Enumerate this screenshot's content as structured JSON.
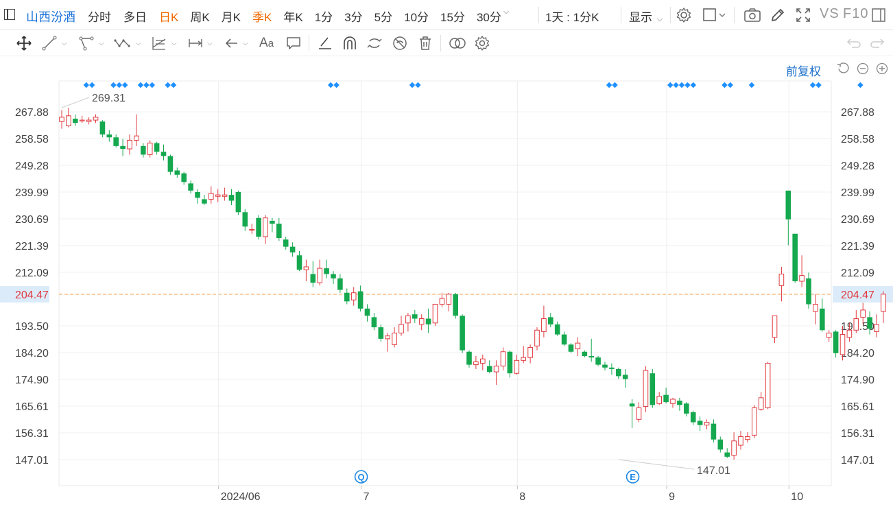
{
  "header": {
    "stock_name": "山西汾酒",
    "periods": [
      {
        "label": "分时",
        "active": false
      },
      {
        "label": "多日",
        "active": false,
        "dropdown": false
      },
      {
        "label": "日K",
        "active": true
      },
      {
        "label": "周K",
        "active": false
      },
      {
        "label": "月K",
        "active": false
      },
      {
        "label": "季K",
        "active": true
      },
      {
        "label": "年K",
        "active": false
      },
      {
        "label": "1分",
        "active": false
      },
      {
        "label": "3分",
        "active": false
      },
      {
        "label": "5分",
        "active": false
      },
      {
        "label": "10分",
        "active": false
      },
      {
        "label": "15分",
        "active": false
      },
      {
        "label": "30分",
        "active": false,
        "dropdown": true
      }
    ],
    "interval_select": "1天 : 1分K",
    "display_menu": "显示",
    "vs_label": "VS",
    "f10_label": "F10"
  },
  "adjust_label": "前复权",
  "accent_color": "#1a73d9",
  "colors": {
    "up": "#e0393e",
    "down": "#15a84f",
    "last_price_line": "#f0a050",
    "marker": "#1e90ff"
  },
  "chart_data": {
    "type": "candlestick",
    "y_ticks": [
      "267.88",
      "258.58",
      "249.28",
      "239.99",
      "230.69",
      "221.39",
      "212.09",
      "204.47",
      "193.50",
      "184.20",
      "174.90",
      "165.61",
      "156.31",
      "147.01"
    ],
    "ylim": [
      147.01,
      267.88
    ],
    "last_price": "204.47",
    "x_labels": [
      {
        "label": "2024/06",
        "index": 23
      },
      {
        "label": "7",
        "index": 44
      },
      {
        "label": "8",
        "index": 67
      },
      {
        "label": "9",
        "index": 89
      },
      {
        "label": "10",
        "index": 107
      }
    ],
    "high_annotation": {
      "label": "269.31",
      "value": 269.31,
      "index": 0
    },
    "low_annotation": {
      "label": "147.01",
      "value": 147.01,
      "index": 82
    },
    "event_markers": [
      {
        "label": "Q",
        "index": 44
      },
      {
        "label": "E",
        "index": 84
      }
    ],
    "dot_groups": [
      {
        "index": 2,
        "count": 2
      },
      {
        "index": 6,
        "count": 3
      },
      {
        "index": 10,
        "count": 3
      },
      {
        "index": 14,
        "count": 2
      },
      {
        "index": 38,
        "count": 2
      },
      {
        "index": 50,
        "count": 2
      },
      {
        "index": 79,
        "count": 2
      },
      {
        "index": 88,
        "count": 5
      },
      {
        "index": 96,
        "count": 2
      },
      {
        "index": 100,
        "count": 1
      },
      {
        "index": 109,
        "count": 2
      },
      {
        "index": 116,
        "count": 1
      }
    ],
    "candles": [
      [
        264.5,
        268.5,
        262,
        266
      ],
      [
        263,
        269.31,
        262.5,
        266.5
      ],
      [
        265.5,
        267,
        263,
        264
      ],
      [
        265,
        266.5,
        264,
        265
      ],
      [
        264.5,
        266,
        263.5,
        265
      ],
      [
        265,
        267,
        264,
        266
      ],
      [
        264.5,
        265,
        259,
        260
      ],
      [
        260,
        261.5,
        257.5,
        259
      ],
      [
        259,
        260,
        255.5,
        256
      ],
      [
        256,
        258.5,
        252.5,
        255
      ],
      [
        255,
        260,
        253,
        258
      ],
      [
        258,
        267,
        256,
        259.5
      ],
      [
        256,
        257,
        252,
        253
      ],
      [
        253,
        258,
        252,
        257
      ],
      [
        257,
        257.5,
        253,
        254
      ],
      [
        254,
        256.5,
        251,
        252.5
      ],
      [
        252.5,
        253,
        246,
        247
      ],
      [
        247.5,
        248.5,
        245,
        246
      ],
      [
        246.5,
        247,
        242.5,
        243.5
      ],
      [
        243,
        244,
        239.5,
        240.5
      ],
      [
        240,
        241,
        236,
        238
      ],
      [
        237.5,
        239,
        235.5,
        236
      ],
      [
        237.5,
        242,
        236,
        239.5
      ],
      [
        238.5,
        241,
        236.5,
        239
      ],
      [
        238.5,
        241.5,
        237,
        239
      ],
      [
        239,
        241,
        235.5,
        237
      ],
      [
        240,
        240.5,
        232,
        233
      ],
      [
        233,
        234,
        226.5,
        228
      ],
      [
        227,
        229,
        225.5,
        227
      ],
      [
        231,
        232,
        223.5,
        224.5
      ],
      [
        224.5,
        232,
        222,
        231
      ],
      [
        230,
        231,
        226,
        229
      ],
      [
        229,
        231,
        223,
        224
      ],
      [
        223.5,
        224.5,
        220,
        221
      ],
      [
        221,
        222.5,
        217.5,
        219
      ],
      [
        218,
        219.5,
        212.5,
        213
      ],
      [
        213,
        216.5,
        209,
        214
      ],
      [
        211.5,
        216,
        207,
        208.5
      ],
      [
        208.5,
        216.5,
        207.5,
        213.5
      ],
      [
        213.5,
        216.5,
        210,
        211.5
      ],
      [
        211.5,
        212.5,
        208,
        210
      ],
      [
        210,
        211.5,
        205,
        206
      ],
      [
        205,
        206.5,
        201,
        202
      ],
      [
        202.5,
        207,
        200.5,
        205
      ],
      [
        205.5,
        207.5,
        198.5,
        199.5
      ],
      [
        199.5,
        201,
        195,
        197
      ],
      [
        196.5,
        198,
        192,
        193
      ],
      [
        193,
        194,
        188,
        189
      ],
      [
        189,
        191,
        184.5,
        190
      ],
      [
        187,
        193,
        186,
        191
      ],
      [
        191,
        197,
        190,
        194
      ],
      [
        194.5,
        198,
        191.5,
        197
      ],
      [
        197.5,
        199,
        194.5,
        196
      ],
      [
        194,
        197.5,
        192,
        196
      ],
      [
        196,
        199.5,
        191,
        194
      ],
      [
        194.5,
        200.5,
        193.5,
        201
      ],
      [
        201,
        205,
        200,
        203
      ],
      [
        201,
        205,
        198.5,
        204.5
      ],
      [
        204.5,
        205,
        196,
        197
      ],
      [
        197,
        197.5,
        184,
        185
      ],
      [
        184.5,
        185,
        179,
        180
      ],
      [
        180,
        183,
        178.5,
        181
      ],
      [
        180.5,
        183.5,
        178,
        182
      ],
      [
        179.5,
        181.5,
        177,
        177.5
      ],
      [
        177.5,
        181.5,
        173,
        179.5
      ],
      [
        179.5,
        186,
        178,
        184.5
      ],
      [
        184.5,
        185,
        175.5,
        177
      ],
      [
        177,
        183.5,
        176.5,
        181.5
      ],
      [
        181.5,
        186.5,
        180.5,
        182.5
      ],
      [
        182.5,
        187,
        180.5,
        186
      ],
      [
        186.5,
        193,
        185,
        192
      ],
      [
        191.5,
        200.5,
        189.5,
        196
      ],
      [
        196.5,
        198,
        193,
        194
      ],
      [
        194,
        195,
        190,
        190.5
      ],
      [
        190.5,
        191.5,
        186.5,
        187
      ],
      [
        187,
        187.5,
        184,
        184.5
      ],
      [
        185.5,
        189.5,
        183,
        187.5
      ],
      [
        184.5,
        185,
        182.5,
        183
      ],
      [
        183,
        189,
        181,
        182.5
      ],
      [
        182.5,
        183,
        179.5,
        180
      ],
      [
        180,
        181,
        178,
        179
      ],
      [
        179,
        180.5,
        176.5,
        178.5
      ],
      [
        178.5,
        179,
        175,
        176
      ],
      [
        176.5,
        178.5,
        172,
        175
      ],
      [
        166.5,
        168,
        158,
        165.5
      ],
      [
        161,
        167,
        160,
        165
      ],
      [
        165.5,
        179.5,
        163.5,
        178
      ],
      [
        177,
        178.5,
        165,
        166
      ],
      [
        166.5,
        170.5,
        166,
        169
      ],
      [
        169.5,
        172,
        166.5,
        167
      ],
      [
        166.5,
        168.5,
        165,
        168
      ],
      [
        167.5,
        168.5,
        164,
        166
      ],
      [
        166.5,
        167,
        162,
        163
      ],
      [
        163.5,
        164,
        159,
        160
      ],
      [
        160.5,
        162,
        157,
        159
      ],
      [
        159,
        161,
        157.5,
        160
      ],
      [
        159.5,
        161,
        153,
        154
      ],
      [
        154,
        155,
        149.5,
        150.5
      ],
      [
        149.5,
        151,
        147.5,
        148
      ],
      [
        148.5,
        156.5,
        147.01,
        153.5
      ],
      [
        152,
        157,
        150.5,
        155
      ],
      [
        154,
        156.5,
        153,
        155
      ],
      [
        155.5,
        166,
        154.5,
        165
      ],
      [
        164.5,
        170.5,
        164,
        168.5
      ],
      [
        165,
        181,
        164.5,
        180.5
      ],
      [
        189.5,
        197,
        187.5,
        197
      ],
      [
        207.5,
        214,
        202,
        211.5
      ],
      [
        240.5,
        240.5,
        221.5,
        230.5
      ],
      [
        225.5,
        225.5,
        208.5,
        209
      ],
      [
        209,
        218,
        207,
        211
      ],
      [
        210,
        212,
        199.5,
        201
      ],
      [
        198.5,
        204.5,
        194,
        201
      ],
      [
        199.5,
        203,
        191.5,
        192
      ],
      [
        189.5,
        192,
        188,
        191
      ],
      [
        191.5,
        192,
        182.5,
        184
      ],
      [
        183.5,
        193.5,
        181.5,
        190.5
      ],
      [
        189.5,
        194.5,
        188,
        192
      ],
      [
        192,
        199,
        191,
        196
      ],
      [
        196.5,
        201.5,
        194,
        199
      ],
      [
        196.5,
        198.5,
        190.5,
        192.5
      ],
      [
        191.5,
        197.5,
        189.5,
        194
      ],
      [
        198.5,
        205.5,
        194.5,
        204.5
      ]
    ]
  }
}
